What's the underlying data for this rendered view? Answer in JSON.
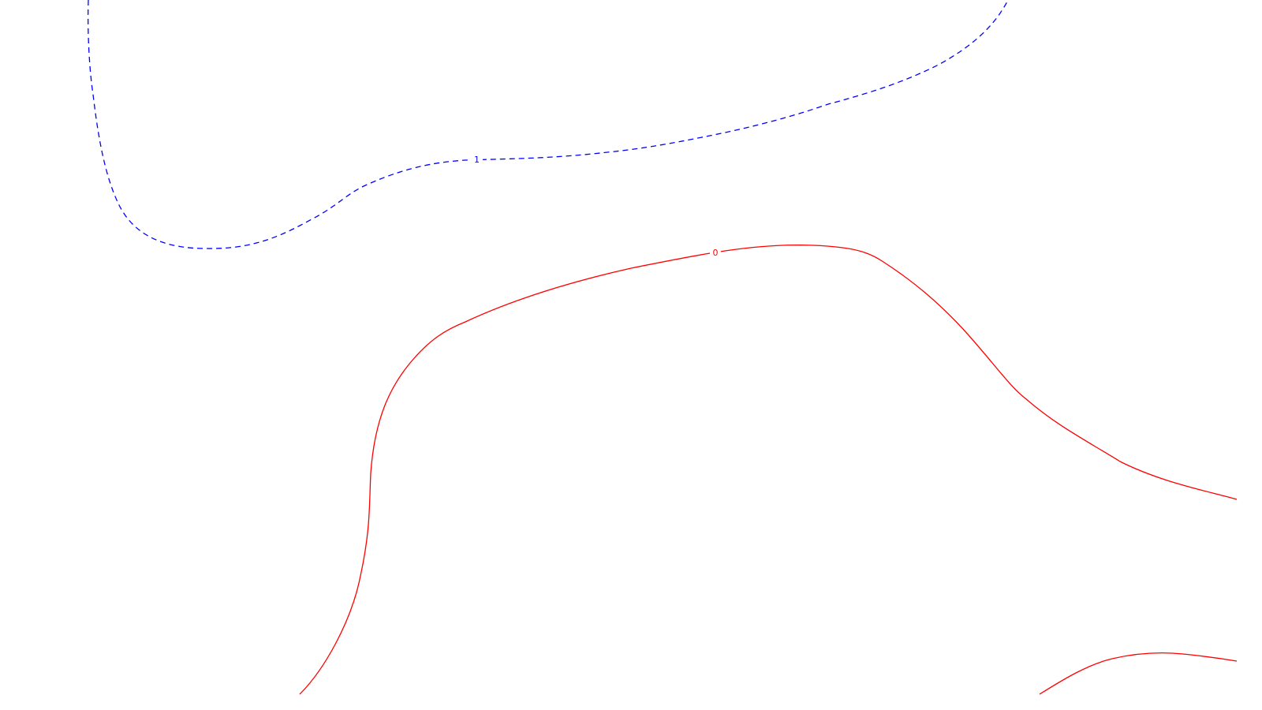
{
  "chart_data": {
    "type": "contour",
    "title": "",
    "xlabel": "",
    "ylabel": "",
    "grid": false,
    "legend": false,
    "contour_levels": [
      {
        "level_label": "1",
        "color": "#0000ff",
        "line_style": "dashed"
      },
      {
        "level_label": "0",
        "color": "#ff0000",
        "line_style": "solid"
      }
    ],
    "colors": {
      "background": "#ffffff",
      "negative_level": "#0000ff",
      "zero_level": "#ff0000"
    }
  }
}
